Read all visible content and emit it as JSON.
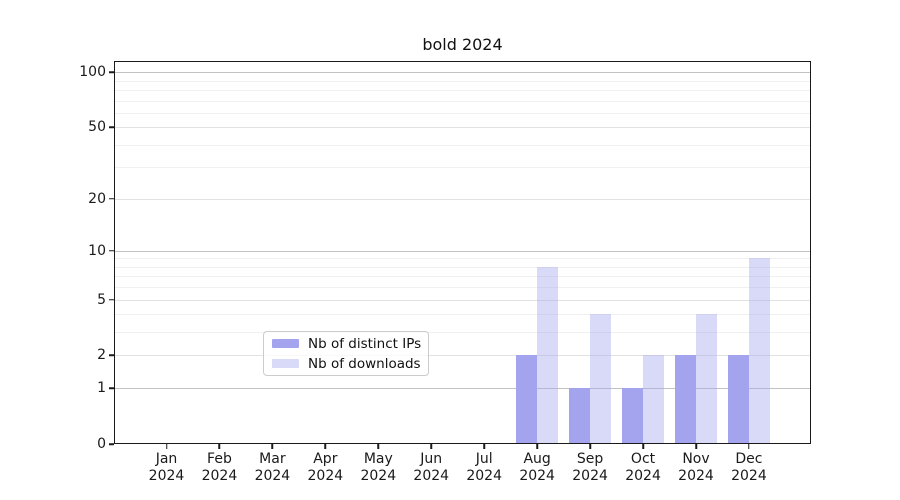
{
  "title": "bold 2024",
  "chart_data": {
    "type": "bar",
    "title": "bold 2024",
    "categories": [
      "Jan 2024",
      "Feb 2024",
      "Mar 2024",
      "Apr 2024",
      "May 2024",
      "Jun 2024",
      "Jul 2024",
      "Aug 2024",
      "Sep 2024",
      "Oct 2024",
      "Nov 2024",
      "Dec 2024"
    ],
    "series": [
      {
        "name": "Nb of distinct IPs",
        "color": "#a4a4ee",
        "values": [
          0,
          0,
          0,
          0,
          0,
          0,
          0,
          2,
          1,
          1,
          2,
          2
        ]
      },
      {
        "name": "Nb of downloads",
        "color": "rgba(164,164,238,0.42)",
        "values": [
          0,
          0,
          0,
          0,
          0,
          0,
          0,
          8,
          4,
          2,
          4,
          9
        ]
      }
    ],
    "xlabel": "",
    "ylabel": "",
    "y_scale": "log1p",
    "ylim": [
      0,
      115
    ],
    "y_major_ticks": [
      0,
      1,
      2,
      5,
      10,
      20,
      50,
      100
    ],
    "y_decade_ticks": [
      1,
      10,
      100
    ],
    "y_minor_ticks": [
      3,
      4,
      6,
      7,
      8,
      9,
      30,
      40,
      60,
      70,
      80,
      90
    ],
    "grid": "horizontal",
    "legend_position": "inside-bottom-center"
  },
  "colors": {
    "bar_distinct_ips": "#a4a4ee",
    "bar_downloads_fill": "rgba(164,164,238,0.42)",
    "grid_decade": "#c2c2c2",
    "grid_major": "#e2e2e2",
    "grid_minor": "#f0f0f0",
    "axis": "#1a1a1a",
    "legend_border": "#cccccc"
  }
}
